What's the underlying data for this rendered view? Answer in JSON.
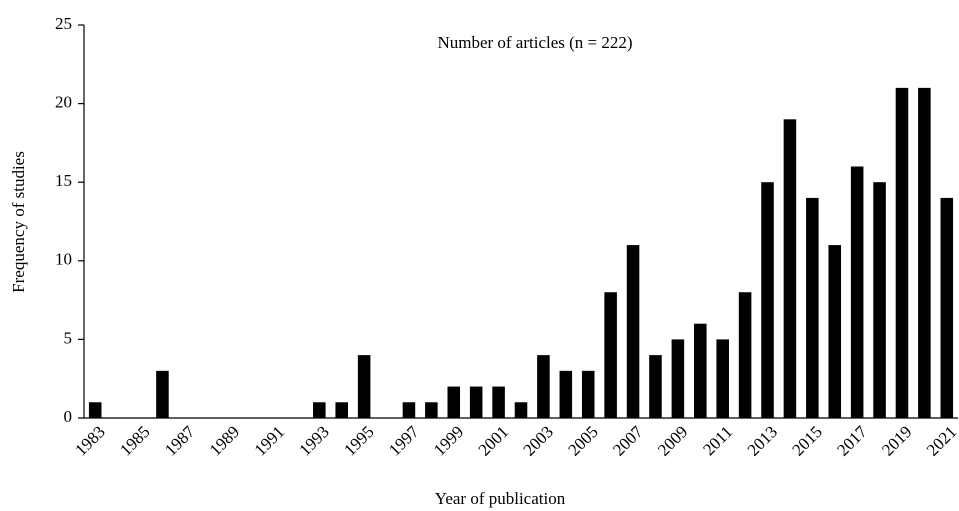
{
  "chart_data": {
    "type": "bar",
    "title": "Number of articles (n = 222)",
    "x_label": "Year of publication",
    "y_label": "Frequency of studies",
    "categories": [
      "1983",
      null,
      "1985",
      null,
      "1987",
      null,
      "1989",
      null,
      "1991",
      null,
      "1993",
      null,
      "1995",
      null,
      "1997",
      null,
      "1999",
      null,
      "2001",
      null,
      "2003",
      null,
      "2005",
      null,
      "2007",
      null,
      "2009",
      null,
      "2011",
      null,
      "2013",
      null,
      "2015",
      null,
      "2017",
      null,
      "2019",
      null,
      "2021"
    ],
    "values": [
      1,
      0,
      0,
      3,
      0,
      0,
      0,
      0,
      0,
      0,
      1,
      1,
      4,
      0,
      1,
      1,
      2,
      2,
      2,
      1,
      4,
      3,
      3,
      8,
      11,
      4,
      5,
      6,
      5,
      8,
      15,
      19,
      14,
      11,
      16,
      15,
      21,
      21,
      14
    ],
    "color": "#000000",
    "ylim": [
      0,
      25
    ],
    "yticks": [
      0,
      5,
      10,
      15,
      20,
      25
    ],
    "grid": false
  }
}
